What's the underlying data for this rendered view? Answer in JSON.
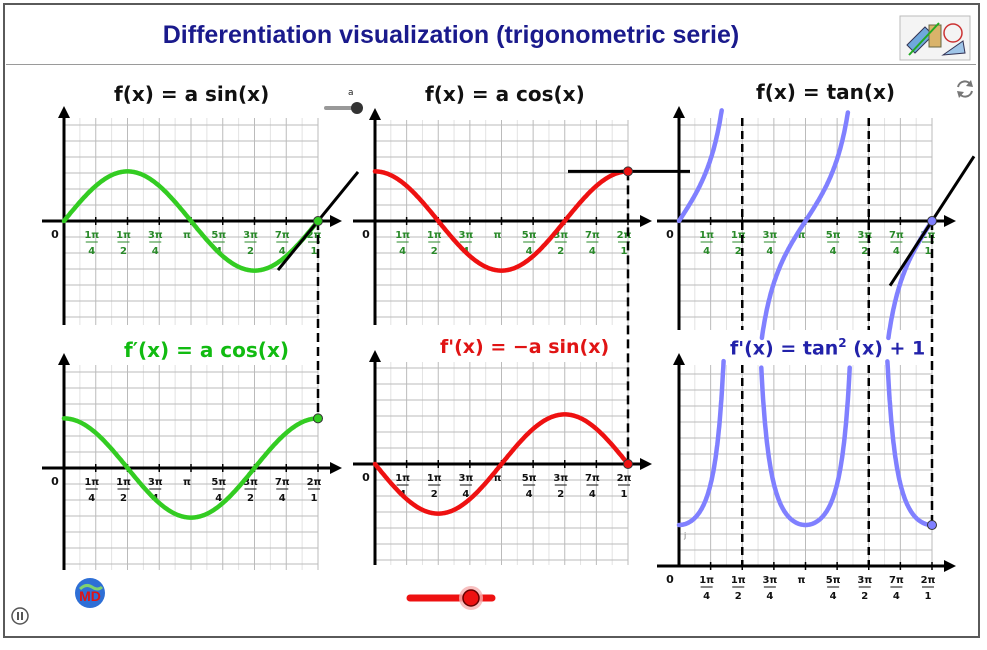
{
  "header": {
    "title": "Differentiation visualization (trigonometric serie)"
  },
  "slider_a": {
    "label": "a",
    "icon": "slider-handle-icon"
  },
  "top_labels": {
    "sin": {
      "pre": "f(x) = a sin(x)"
    },
    "cos": {
      "pre": "f(x) = a cos(x)"
    },
    "tan": {
      "pre": "f(x) = tan(x)"
    }
  },
  "bottom_labels": {
    "sin_deriv": "f′(x) = a cos(x)",
    "cos_deriv": "f'(x) = −a sin(x)",
    "tan_deriv_pre": "f'(x)  = tan",
    "tan_deriv_sup": "2",
    "tan_deriv_post": " (x) + 1"
  },
  "ticks": {
    "top": [
      "1π",
      "1π",
      "3π",
      "π",
      "5π",
      "3π",
      "7π",
      "2π"
    ],
    "bottom": [
      "4",
      "2",
      "4",
      "",
      "4",
      "2",
      "4",
      "1"
    ],
    "zero": "0"
  },
  "tan_small_label": "j",
  "icons": {
    "reset": "reset-icon",
    "pause": "pause-icon",
    "logo": "geogebra-tools-logo",
    "md": "md-logo"
  },
  "colors": {
    "title": "#1a1a8c",
    "sin": "#33cc22",
    "cos": "#ee1111",
    "tan": "#8080ff",
    "grid": "#bbbbbb"
  },
  "chart_data": [
    {
      "type": "line",
      "series": [
        {
          "name": "a sin(x)",
          "x": [
            0,
            6.283
          ],
          "function": "a*sin(x)"
        }
      ],
      "a": 0.8,
      "xlim": [
        0,
        6.283
      ],
      "ylim": [
        -1.5,
        1.5
      ],
      "tangent_at_x": 6.283
    },
    {
      "type": "line",
      "series": [
        {
          "name": "a cos(x)",
          "x": [
            0,
            6.283
          ],
          "function": "a*cos(x)"
        }
      ],
      "a": 0.8,
      "xlim": [
        0,
        6.283
      ],
      "ylim": [
        -1.5,
        1.5
      ]
    },
    {
      "type": "line",
      "series": [
        {
          "name": "tan(x)",
          "x": [
            0,
            6.283
          ],
          "function": "tan(x)"
        }
      ],
      "xlim": [
        0,
        6.283
      ],
      "ylim": [
        -1.5,
        1.5
      ]
    },
    {
      "type": "line",
      "series": [
        {
          "name": "a cos(x)",
          "x": [
            0,
            6.283
          ],
          "function": "a*cos(x)"
        }
      ],
      "a": 0.8,
      "xlim": [
        0,
        6.283
      ],
      "ylim": [
        -1.5,
        1.5
      ]
    },
    {
      "type": "line",
      "series": [
        {
          "name": "-a sin(x)",
          "x": [
            0,
            6.283
          ],
          "function": "-a*sin(x)"
        }
      ],
      "a": 0.8,
      "xlim": [
        0,
        6.283
      ],
      "ylim": [
        -1.5,
        1.5
      ]
    },
    {
      "type": "line",
      "series": [
        {
          "name": "tan^2(x)+1",
          "x": [
            0,
            6.283
          ],
          "function": "tan(x)^2+1"
        }
      ],
      "xlim": [
        0,
        6.283
      ],
      "ylim": [
        0,
        6
      ]
    }
  ]
}
